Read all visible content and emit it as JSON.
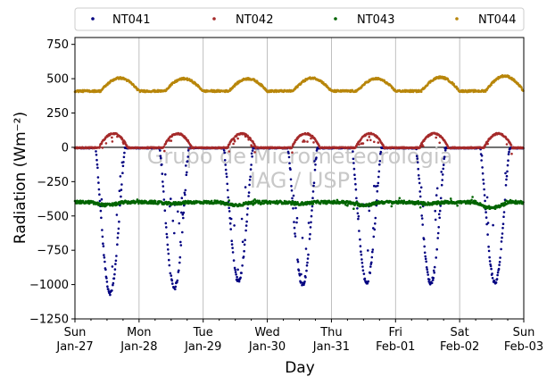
{
  "chart_data": {
    "type": "scatter",
    "xlabel": "Day",
    "ylabel": "Radiation (Wm⁻²)",
    "ylim": [
      -1250,
      800
    ],
    "yticks": [
      -1250,
      -1000,
      -750,
      -500,
      -250,
      0,
      250,
      500,
      750
    ],
    "xlim": [
      "2025-01-27",
      "2025-02-03"
    ],
    "xticks": [
      {
        "day": "Sun",
        "date": "Jan-27"
      },
      {
        "day": "Mon",
        "date": "Jan-28"
      },
      {
        "day": "Tue",
        "date": "Jan-29"
      },
      {
        "day": "Wed",
        "date": "Jan-30"
      },
      {
        "day": "Thu",
        "date": "Jan-31"
      },
      {
        "day": "Fri",
        "date": "Feb-01"
      },
      {
        "day": "Sat",
        "date": "Feb-02"
      },
      {
        "day": "Sun",
        "date": "Feb-03"
      }
    ],
    "grid": "vertical",
    "legend_position": "top",
    "reference_line_y": 0,
    "watermark": [
      "Grupo de Micrometeorologia",
      "IAG / USP"
    ],
    "series": [
      {
        "name": "NT041",
        "color": "#000080",
        "baseline": -5,
        "daily_extreme": [
          -1060,
          -1025,
          -975,
          -1000,
          -990,
          -990,
          -990
        ],
        "daily_peak_time": 0.55
      },
      {
        "name": "NT042",
        "color": "#a52a2a",
        "baseline": -3,
        "daily_extreme": [
          100,
          100,
          100,
          100,
          100,
          100,
          100
        ],
        "daily_peak_time": 0.6
      },
      {
        "name": "NT043",
        "color": "#006400",
        "baseline": -400,
        "daily_extreme": [
          -420,
          -410,
          -420,
          -410,
          -420,
          -410,
          -440
        ],
        "daily_peak_time": 0.5
      },
      {
        "name": "NT044",
        "color": "#b8860b",
        "baseline": 410,
        "daily_extreme": [
          505,
          500,
          500,
          505,
          500,
          510,
          520
        ],
        "daily_peak_time": 0.7
      }
    ]
  }
}
